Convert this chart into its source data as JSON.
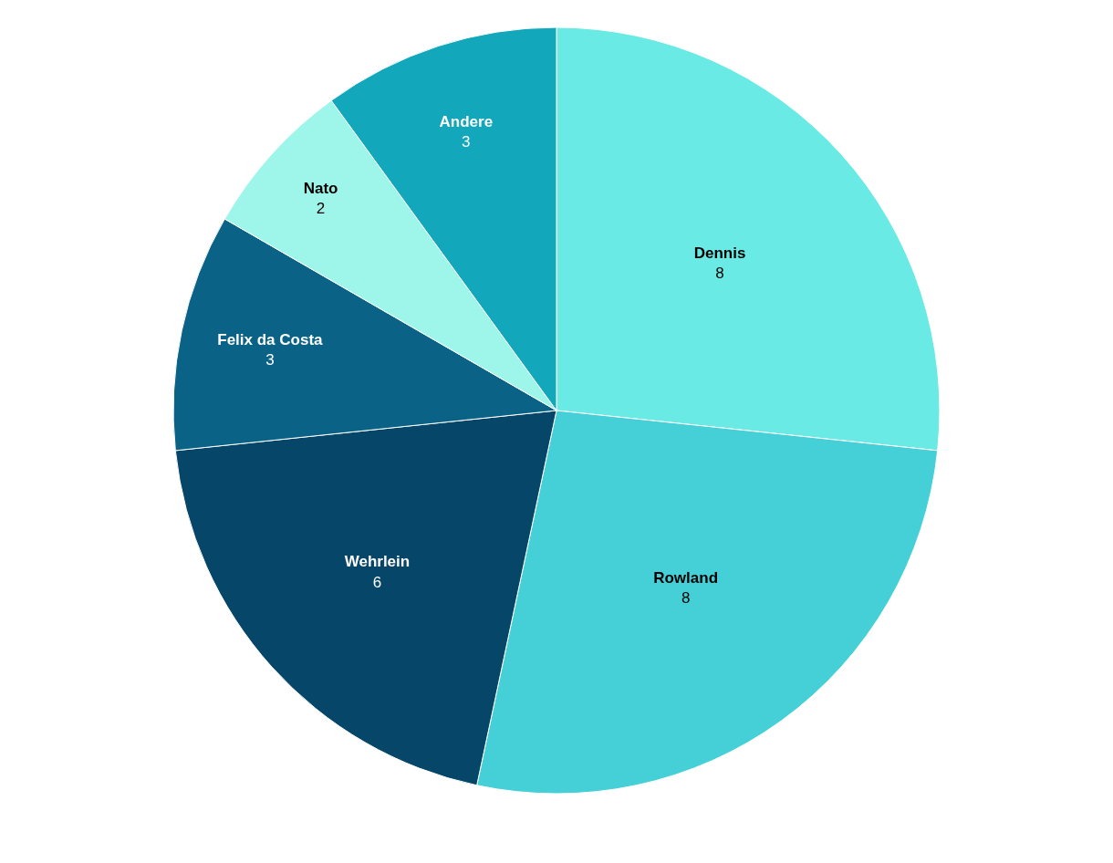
{
  "chart_data": {
    "type": "pie",
    "categories": [
      "Dennis",
      "Rowland",
      "Wehrlein",
      "Felix da Costa",
      "Nato",
      "Andere"
    ],
    "values": [
      8,
      8,
      6,
      3,
      2,
      3
    ],
    "colors": [
      "#6aeae4",
      "#45d0d7",
      "#064669",
      "#0a6386",
      "#9ef6ea",
      "#12a7bb"
    ],
    "data_labels": true,
    "legend": false
  }
}
